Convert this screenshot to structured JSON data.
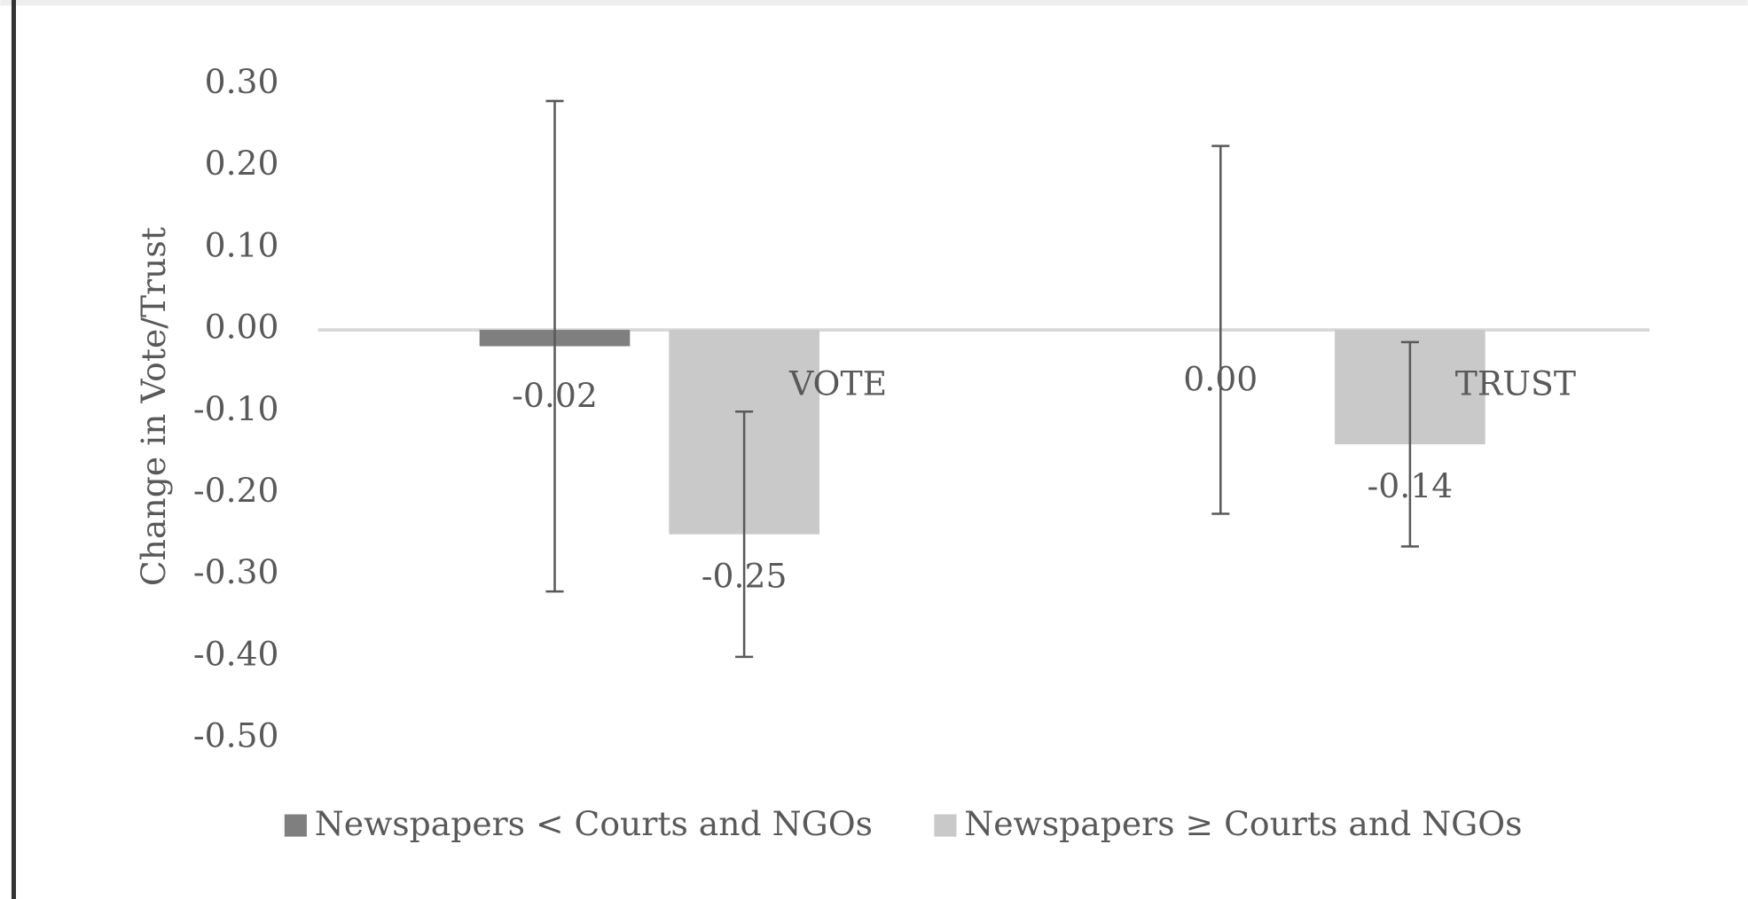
{
  "chart_data": {
    "type": "bar",
    "ylabel": "Change  in Vote/Trust",
    "categories": [
      "VOTE",
      "TRUST"
    ],
    "series": [
      {
        "name": "Newspapers < Courts and NGOs",
        "color": "#7f7f7f",
        "values": [
          -0.02,
          0.0
        ],
        "value_labels": [
          "-0.02",
          "0.00"
        ],
        "errors": [
          0.3,
          0.225
        ]
      },
      {
        "name": "Newspapers ≥ Courts and NGOs",
        "color": "#c9c9c9",
        "values": [
          -0.25,
          -0.14
        ],
        "value_labels": [
          "-0.25",
          "-0.14"
        ],
        "errors": [
          0.15,
          0.125
        ]
      }
    ],
    "ylim": [
      -0.5,
      0.3
    ],
    "yticks": [
      {
        "value": 0.3,
        "label": "0.30"
      },
      {
        "value": 0.2,
        "label": "0.20"
      },
      {
        "value": 0.1,
        "label": "0.10"
      },
      {
        "value": 0,
        "label": "0.00"
      },
      {
        "value": -0.1,
        "label": "-0.10"
      },
      {
        "value": -0.2,
        "label": "-0.20"
      },
      {
        "value": -0.3,
        "label": "-0.30"
      },
      {
        "value": -0.4,
        "label": "-0.40"
      },
      {
        "value": -0.5,
        "label": "-0.50"
      }
    ],
    "legend": "bottom"
  }
}
